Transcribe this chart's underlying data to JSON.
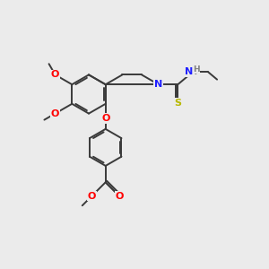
{
  "bg": "#ebebeb",
  "bond_color": "#3a3a3a",
  "bond_width": 1.4,
  "atom_colors": {
    "N": "#2020ff",
    "O": "#ff0000",
    "S": "#b8b800",
    "H": "#808080",
    "C": "#3a3a3a"
  },
  "figsize": [
    3.0,
    3.0
  ],
  "dpi": 100
}
